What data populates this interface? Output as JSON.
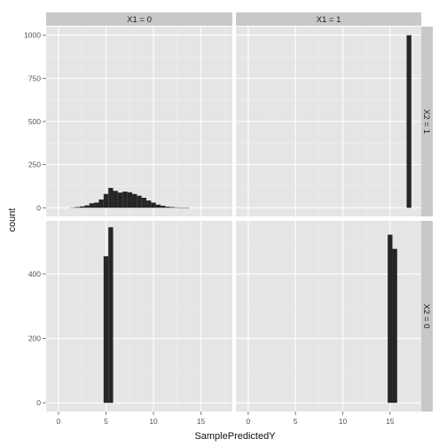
{
  "chart_data": {
    "type": "histogram",
    "title": "",
    "xlabel": "SamplePredictedY",
    "ylabel": "count",
    "xlim": [
      -1.3,
      18.3
    ],
    "x_ticks": [
      0,
      5,
      10,
      15
    ],
    "x_tick_labels": [
      "0",
      "5",
      "10",
      "15"
    ],
    "col_facet_var": "X1",
    "col_strips": [
      "X1 = 0",
      "X1 = 1"
    ],
    "row_facet_var": "X2",
    "row_strips": [
      "X2 = 1",
      "X2 = 0"
    ],
    "binwidth": 0.5,
    "rows": [
      {
        "strip": "X2 = 1",
        "ylim": [
          -50,
          1050
        ],
        "y_ticks": [
          0,
          250,
          500,
          750,
          1000
        ],
        "y_tick_labels": [
          "0",
          "250",
          "500",
          "750",
          "1000"
        ]
      },
      {
        "strip": "X2 = 0",
        "ylim": [
          -27,
          565
        ],
        "y_ticks": [
          0,
          200,
          400
        ],
        "y_tick_labels": [
          "0",
          "200",
          "400"
        ]
      }
    ],
    "panels": [
      {
        "row": 0,
        "col": 0,
        "bins": [
          {
            "x": 1.5,
            "count": 2
          },
          {
            "x": 2.0,
            "count": 4
          },
          {
            "x": 2.5,
            "count": 8
          },
          {
            "x": 3.0,
            "count": 14
          },
          {
            "x": 3.5,
            "count": 26
          },
          {
            "x": 4.0,
            "count": 30
          },
          {
            "x": 4.5,
            "count": 48
          },
          {
            "x": 5.0,
            "count": 80
          },
          {
            "x": 5.5,
            "count": 115
          },
          {
            "x": 6.0,
            "count": 98
          },
          {
            "x": 6.5,
            "count": 88
          },
          {
            "x": 7.0,
            "count": 94
          },
          {
            "x": 7.5,
            "count": 90
          },
          {
            "x": 8.0,
            "count": 80
          },
          {
            "x": 8.5,
            "count": 70
          },
          {
            "x": 9.0,
            "count": 58
          },
          {
            "x": 9.5,
            "count": 42
          },
          {
            "x": 10.0,
            "count": 30
          },
          {
            "x": 10.5,
            "count": 18
          },
          {
            "x": 11.0,
            "count": 12
          },
          {
            "x": 11.5,
            "count": 6
          },
          {
            "x": 12.0,
            "count": 4
          },
          {
            "x": 12.5,
            "count": 2
          },
          {
            "x": 13.0,
            "count": 1
          },
          {
            "x": 13.5,
            "count": 1
          }
        ]
      },
      {
        "row": 0,
        "col": 1,
        "bins": [
          {
            "x": 17.0,
            "count": 1000
          }
        ]
      },
      {
        "row": 1,
        "col": 0,
        "bins": [
          {
            "x": 5.0,
            "count": 455
          },
          {
            "x": 5.5,
            "count": 545
          }
        ]
      },
      {
        "row": 1,
        "col": 1,
        "bins": [
          {
            "x": 15.0,
            "count": 522
          },
          {
            "x": 15.5,
            "count": 478
          }
        ]
      }
    ]
  }
}
